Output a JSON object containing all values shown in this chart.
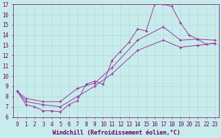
{
  "title": "",
  "xlabel": "Windchill (Refroidissement éolien,°C)",
  "ylabel": "",
  "xlim": [
    -0.5,
    23.5
  ],
  "ylim": [
    6,
    17
  ],
  "xticks": [
    0,
    1,
    2,
    3,
    4,
    5,
    6,
    7,
    8,
    9,
    10,
    11,
    12,
    13,
    14,
    15,
    16,
    17,
    18,
    19,
    20,
    21,
    22,
    23
  ],
  "yticks": [
    6,
    7,
    8,
    9,
    10,
    11,
    12,
    13,
    14,
    15,
    16,
    17
  ],
  "background_color": "#c8ecec",
  "grid_color": "#b0d8d8",
  "line_color": "#993399",
  "line1_x": [
    0,
    1,
    2,
    3,
    4,
    5,
    6,
    7,
    8,
    9,
    10,
    11,
    12,
    13,
    14,
    15,
    16,
    17,
    18,
    19,
    20,
    21,
    22,
    23
  ],
  "line1_y": [
    8.5,
    7.2,
    7.0,
    6.6,
    6.6,
    6.5,
    7.2,
    7.6,
    9.2,
    9.5,
    9.2,
    11.5,
    12.4,
    13.3,
    14.6,
    14.4,
    17.0,
    17.0,
    16.8,
    15.2,
    14.0,
    13.6,
    13.1,
    13.2
  ],
  "line2_x": [
    0,
    1,
    3,
    5,
    7,
    9,
    11,
    14,
    17,
    19,
    21,
    23
  ],
  "line2_y": [
    8.5,
    7.8,
    7.5,
    7.5,
    8.8,
    9.3,
    10.8,
    13.5,
    14.8,
    13.5,
    13.6,
    13.5
  ],
  "line3_x": [
    0,
    1,
    3,
    5,
    7,
    9,
    11,
    14,
    17,
    19,
    21,
    23
  ],
  "line3_y": [
    8.5,
    7.5,
    7.2,
    7.0,
    8.0,
    9.0,
    10.2,
    12.5,
    13.5,
    12.8,
    13.0,
    13.2
  ],
  "font_color": "#660066",
  "tick_fontsize": 5.5,
  "label_fontsize": 6.0
}
